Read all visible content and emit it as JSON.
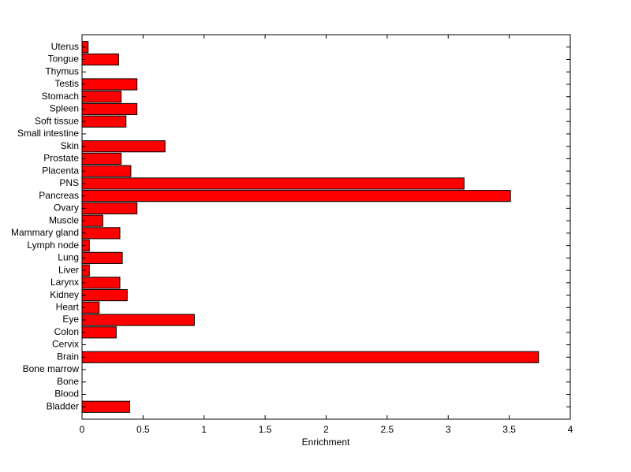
{
  "chart_data": {
    "type": "barh",
    "xlabel": "Enrichment",
    "categories": [
      "Bladder",
      "Blood",
      "Bone",
      "Bone marrow",
      "Brain",
      "Cervix",
      "Colon",
      "Eye",
      "Heart",
      "Kidney",
      "Larynx",
      "Liver",
      "Lung",
      "Lymph node",
      "Mammary gland",
      "Muscle",
      "Ovary",
      "Pancreas",
      "PNS",
      "Placenta",
      "Prostate",
      "Skin",
      "Small intestine",
      "Soft tissue",
      "Spleen",
      "Stomach",
      "Testis",
      "Thymus",
      "Tongue",
      "Uterus"
    ],
    "values": [
      0.39,
      0,
      0,
      0,
      3.74,
      0,
      0.28,
      0.92,
      0.14,
      0.37,
      0.31,
      0.06,
      0.33,
      0.06,
      0.31,
      0.17,
      0.45,
      3.51,
      3.13,
      0.4,
      0.32,
      0.68,
      0,
      0.36,
      0.45,
      0.32,
      0.45,
      0,
      0.3,
      0.05
    ],
    "color": "#ff0000",
    "xlim": [
      0,
      4
    ],
    "xticks": [
      0,
      0.5,
      1,
      1.5,
      2,
      2.5,
      3,
      3.5,
      4
    ]
  }
}
